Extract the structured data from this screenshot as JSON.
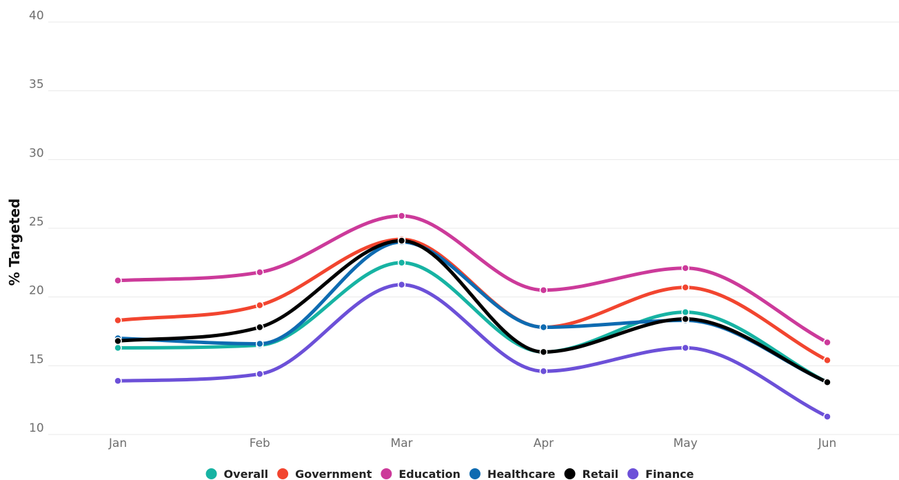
{
  "chart_data": {
    "type": "line",
    "title": "",
    "xlabel": "",
    "ylabel": "% Targeted",
    "categories": [
      "Jan",
      "Feb",
      "Mar",
      "Apr",
      "May",
      "Jun"
    ],
    "ylim": [
      10,
      40
    ],
    "yticks": [
      10,
      15,
      20,
      25,
      30,
      35,
      40
    ],
    "grid": true,
    "legend_position": "bottom",
    "smooth": true,
    "series": [
      {
        "name": "Overall",
        "color": "#17b3a3",
        "values": [
          16.3,
          16.5,
          22.5,
          16.0,
          18.9,
          13.8
        ]
      },
      {
        "name": "Government",
        "color": "#f2452f",
        "values": [
          18.3,
          19.4,
          24.2,
          17.8,
          20.7,
          15.4
        ]
      },
      {
        "name": "Education",
        "color": "#cc3a9a",
        "values": [
          21.2,
          21.8,
          25.9,
          20.5,
          22.1,
          16.7
        ]
      },
      {
        "name": "Healthcare",
        "color": "#0e6bb1",
        "values": [
          17.0,
          16.6,
          24.0,
          17.8,
          18.3,
          13.8
        ]
      },
      {
        "name": "Retail",
        "color": "#000000",
        "values": [
          16.8,
          17.8,
          24.1,
          16.0,
          18.4,
          13.8
        ]
      },
      {
        "name": "Finance",
        "color": "#6c50d8",
        "values": [
          13.9,
          14.4,
          20.9,
          14.6,
          16.3,
          11.3
        ]
      }
    ]
  }
}
